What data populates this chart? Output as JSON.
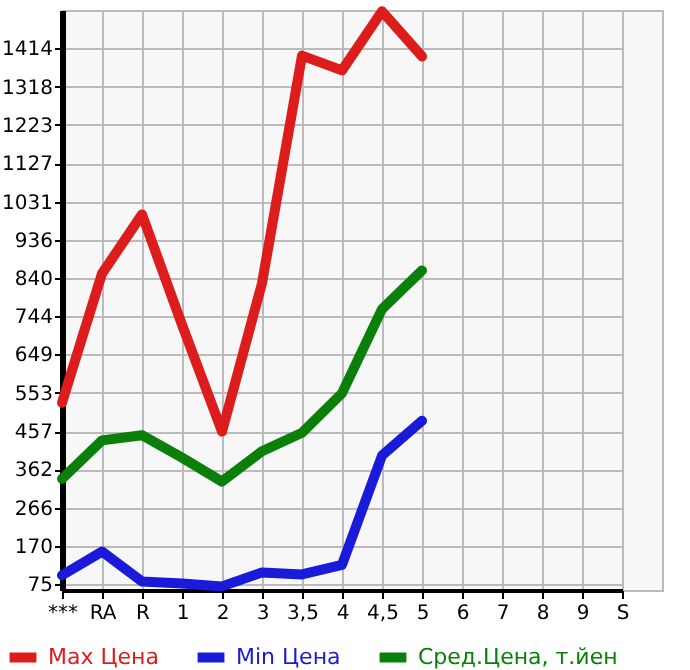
{
  "chart_data": {
    "type": "line",
    "categories": [
      "***",
      "RA",
      "R",
      "1",
      "2",
      "3",
      "3,5",
      "4",
      "4,5",
      "5",
      "6",
      "7",
      "8",
      "9",
      "S"
    ],
    "series": [
      {
        "name": "Max Цена",
        "color": "#dd1c1c",
        "values": [
          528,
          851,
          999,
          723,
          456,
          827,
          1396,
          1359,
          1507,
          1394,
          null,
          null,
          null,
          null,
          null
        ]
      },
      {
        "name": "Min Цена",
        "color": "#1a1adb",
        "values": [
          97,
          156,
          81,
          76,
          69,
          104,
          99,
          123,
          396,
          483,
          null,
          null,
          null,
          null,
          null
        ]
      },
      {
        "name": "Сред.Цена, т.йен",
        "color": "#0a800a",
        "values": [
          338,
          434,
          447,
          391,
          331,
          407,
          453,
          552,
          762,
          859,
          null,
          null,
          null,
          null,
          null
        ]
      }
    ],
    "ylim": [
      60,
      1510
    ],
    "yticks": [
      75,
      170,
      266,
      362,
      457,
      553,
      649,
      744,
      840,
      936,
      1031,
      1127,
      1223,
      1318,
      1414
    ],
    "grid": true,
    "legend": "bottom",
    "marker": "none",
    "line_style": "solid"
  }
}
